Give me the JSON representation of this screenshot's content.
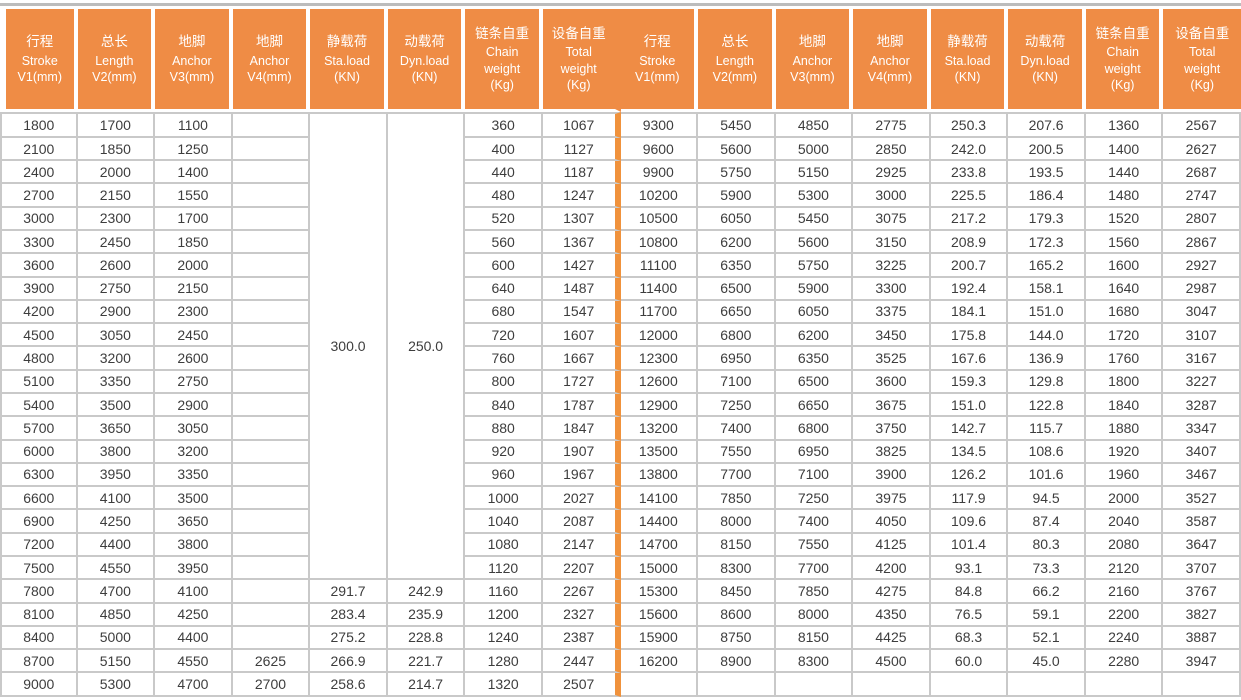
{
  "colors": {
    "header_bg": "#EF8C45",
    "divider_orange": "#F0923C",
    "row_border": "#c9c9c9",
    "top_rule": "#bcbcbc",
    "header_text": "#ffffff",
    "cell_text": "#3d3d3d"
  },
  "table": {
    "column_headers": [
      {
        "lines": [
          "行程",
          "Stroke",
          "V1(mm)"
        ]
      },
      {
        "lines": [
          "总长",
          "Length",
          "V2(mm)"
        ]
      },
      {
        "lines": [
          "地脚",
          "Anchor",
          "V3(mm)"
        ]
      },
      {
        "lines": [
          "地脚",
          "Anchor",
          "V4(mm)"
        ]
      },
      {
        "lines": [
          "静载荷",
          "Sta.load",
          "(KN)"
        ]
      },
      {
        "lines": [
          "动载荷",
          "Dyn.load",
          "(KN)"
        ]
      },
      {
        "lines": [
          "链条自重",
          "Chain",
          "weight",
          "(Kg)"
        ]
      },
      {
        "lines": [
          "设备自重",
          "Total",
          "weight",
          "(Kg)"
        ]
      },
      {
        "lines": [
          "行程",
          "Stroke",
          "V1(mm)"
        ]
      },
      {
        "lines": [
          "总长",
          "Length",
          "V2(mm)"
        ]
      },
      {
        "lines": [
          "地脚",
          "Anchor",
          "V3(mm)"
        ]
      },
      {
        "lines": [
          "地脚",
          "Anchor",
          "V4(mm)"
        ]
      },
      {
        "lines": [
          "静载荷",
          "Sta.load",
          "(KN)"
        ]
      },
      {
        "lines": [
          "动载荷",
          "Dyn.load",
          "(KN)"
        ]
      },
      {
        "lines": [
          "链条自重",
          "Chain",
          "weight",
          "(Kg)"
        ]
      },
      {
        "lines": [
          "设备自重",
          "Total",
          "weight",
          "(Kg)"
        ]
      }
    ],
    "left_merged": {
      "row_span": 20,
      "sta_load": "300.0",
      "dyn_load": "250.0"
    },
    "rows": [
      {
        "left": [
          "1800",
          "1700",
          "1100",
          "",
          null,
          null,
          "360",
          "1067"
        ],
        "right": [
          "9300",
          "5450",
          "4850",
          "2775",
          "250.3",
          "207.6",
          "1360",
          "2567"
        ]
      },
      {
        "left": [
          "2100",
          "1850",
          "1250",
          "",
          null,
          null,
          "400",
          "1127"
        ],
        "right": [
          "9600",
          "5600",
          "5000",
          "2850",
          "242.0",
          "200.5",
          "1400",
          "2627"
        ]
      },
      {
        "left": [
          "2400",
          "2000",
          "1400",
          "",
          null,
          null,
          "440",
          "1187"
        ],
        "right": [
          "9900",
          "5750",
          "5150",
          "2925",
          "233.8",
          "193.5",
          "1440",
          "2687"
        ]
      },
      {
        "left": [
          "2700",
          "2150",
          "1550",
          "",
          null,
          null,
          "480",
          "1247"
        ],
        "right": [
          "10200",
          "5900",
          "5300",
          "3000",
          "225.5",
          "186.4",
          "1480",
          "2747"
        ]
      },
      {
        "left": [
          "3000",
          "2300",
          "1700",
          "",
          null,
          null,
          "520",
          "1307"
        ],
        "right": [
          "10500",
          "6050",
          "5450",
          "3075",
          "217.2",
          "179.3",
          "1520",
          "2807"
        ]
      },
      {
        "left": [
          "3300",
          "2450",
          "1850",
          "",
          null,
          null,
          "560",
          "1367"
        ],
        "right": [
          "10800",
          "6200",
          "5600",
          "3150",
          "208.9",
          "172.3",
          "1560",
          "2867"
        ]
      },
      {
        "left": [
          "3600",
          "2600",
          "2000",
          "",
          null,
          null,
          "600",
          "1427"
        ],
        "right": [
          "11100",
          "6350",
          "5750",
          "3225",
          "200.7",
          "165.2",
          "1600",
          "2927"
        ]
      },
      {
        "left": [
          "3900",
          "2750",
          "2150",
          "",
          null,
          null,
          "640",
          "1487"
        ],
        "right": [
          "11400",
          "6500",
          "5900",
          "3300",
          "192.4",
          "158.1",
          "1640",
          "2987"
        ]
      },
      {
        "left": [
          "4200",
          "2900",
          "2300",
          "",
          null,
          null,
          "680",
          "1547"
        ],
        "right": [
          "11700",
          "6650",
          "6050",
          "3375",
          "184.1",
          "151.0",
          "1680",
          "3047"
        ]
      },
      {
        "left": [
          "4500",
          "3050",
          "2450",
          "",
          null,
          null,
          "720",
          "1607"
        ],
        "right": [
          "12000",
          "6800",
          "6200",
          "3450",
          "175.8",
          "144.0",
          "1720",
          "3107"
        ]
      },
      {
        "left": [
          "4800",
          "3200",
          "2600",
          "",
          null,
          null,
          "760",
          "1667"
        ],
        "right": [
          "12300",
          "6950",
          "6350",
          "3525",
          "167.6",
          "136.9",
          "1760",
          "3167"
        ]
      },
      {
        "left": [
          "5100",
          "3350",
          "2750",
          "",
          null,
          null,
          "800",
          "1727"
        ],
        "right": [
          "12600",
          "7100",
          "6500",
          "3600",
          "159.3",
          "129.8",
          "1800",
          "3227"
        ]
      },
      {
        "left": [
          "5400",
          "3500",
          "2900",
          "",
          null,
          null,
          "840",
          "1787"
        ],
        "right": [
          "12900",
          "7250",
          "6650",
          "3675",
          "151.0",
          "122.8",
          "1840",
          "3287"
        ]
      },
      {
        "left": [
          "5700",
          "3650",
          "3050",
          "",
          null,
          null,
          "880",
          "1847"
        ],
        "right": [
          "13200",
          "7400",
          "6800",
          "3750",
          "142.7",
          "115.7",
          "1880",
          "3347"
        ]
      },
      {
        "left": [
          "6000",
          "3800",
          "3200",
          "",
          null,
          null,
          "920",
          "1907"
        ],
        "right": [
          "13500",
          "7550",
          "6950",
          "3825",
          "134.5",
          "108.6",
          "1920",
          "3407"
        ]
      },
      {
        "left": [
          "6300",
          "3950",
          "3350",
          "",
          null,
          null,
          "960",
          "1967"
        ],
        "right": [
          "13800",
          "7700",
          "7100",
          "3900",
          "126.2",
          "101.6",
          "1960",
          "3467"
        ]
      },
      {
        "left": [
          "6600",
          "4100",
          "3500",
          "",
          null,
          null,
          "1000",
          "2027"
        ],
        "right": [
          "14100",
          "7850",
          "7250",
          "3975",
          "117.9",
          "94.5",
          "2000",
          "3527"
        ]
      },
      {
        "left": [
          "6900",
          "4250",
          "3650",
          "",
          null,
          null,
          "1040",
          "2087"
        ],
        "right": [
          "14400",
          "8000",
          "7400",
          "4050",
          "109.6",
          "87.4",
          "2040",
          "3587"
        ]
      },
      {
        "left": [
          "7200",
          "4400",
          "3800",
          "",
          null,
          null,
          "1080",
          "2147"
        ],
        "right": [
          "14700",
          "8150",
          "7550",
          "4125",
          "101.4",
          "80.3",
          "2080",
          "3647"
        ]
      },
      {
        "left": [
          "7500",
          "4550",
          "3950",
          "",
          null,
          null,
          "1120",
          "2207"
        ],
        "right": [
          "15000",
          "8300",
          "7700",
          "4200",
          "93.1",
          "73.3",
          "2120",
          "3707"
        ]
      },
      {
        "left": [
          "7800",
          "4700",
          "4100",
          "",
          "291.7",
          "242.9",
          "1160",
          "2267"
        ],
        "right": [
          "15300",
          "8450",
          "7850",
          "4275",
          "84.8",
          "66.2",
          "2160",
          "3767"
        ]
      },
      {
        "left": [
          "8100",
          "4850",
          "4250",
          "",
          "283.4",
          "235.9",
          "1200",
          "2327"
        ],
        "right": [
          "15600",
          "8600",
          "8000",
          "4350",
          "76.5",
          "59.1",
          "2200",
          "3827"
        ]
      },
      {
        "left": [
          "8400",
          "5000",
          "4400",
          "",
          "275.2",
          "228.8",
          "1240",
          "2387"
        ],
        "right": [
          "15900",
          "8750",
          "8150",
          "4425",
          "68.3",
          "52.1",
          "2240",
          "3887"
        ]
      },
      {
        "left": [
          "8700",
          "5150",
          "4550",
          "2625",
          "266.9",
          "221.7",
          "1280",
          "2447"
        ],
        "right": [
          "16200",
          "8900",
          "8300",
          "4500",
          "60.0",
          "45.0",
          "2280",
          "3947"
        ]
      },
      {
        "left": [
          "9000",
          "5300",
          "4700",
          "2700",
          "258.6",
          "214.7",
          "1320",
          "2507"
        ],
        "right": [
          "",
          "",
          "",
          "",
          "",
          "",
          "",
          ""
        ]
      }
    ]
  }
}
